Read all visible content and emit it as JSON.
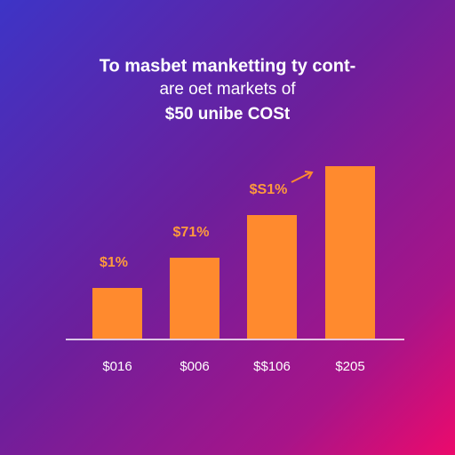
{
  "chart_data": {
    "type": "bar",
    "title_lines": [
      "To masbet manketting ty cont-",
      "are oet markets of",
      "$50 unibe COSt"
    ],
    "categories": [
      "$016",
      "$006",
      "$$106",
      "$205"
    ],
    "values": [
      57,
      91,
      139,
      194
    ],
    "annotations": [
      "$1%",
      "$71%",
      "$S1%"
    ],
    "color": "#ff8a2e"
  }
}
